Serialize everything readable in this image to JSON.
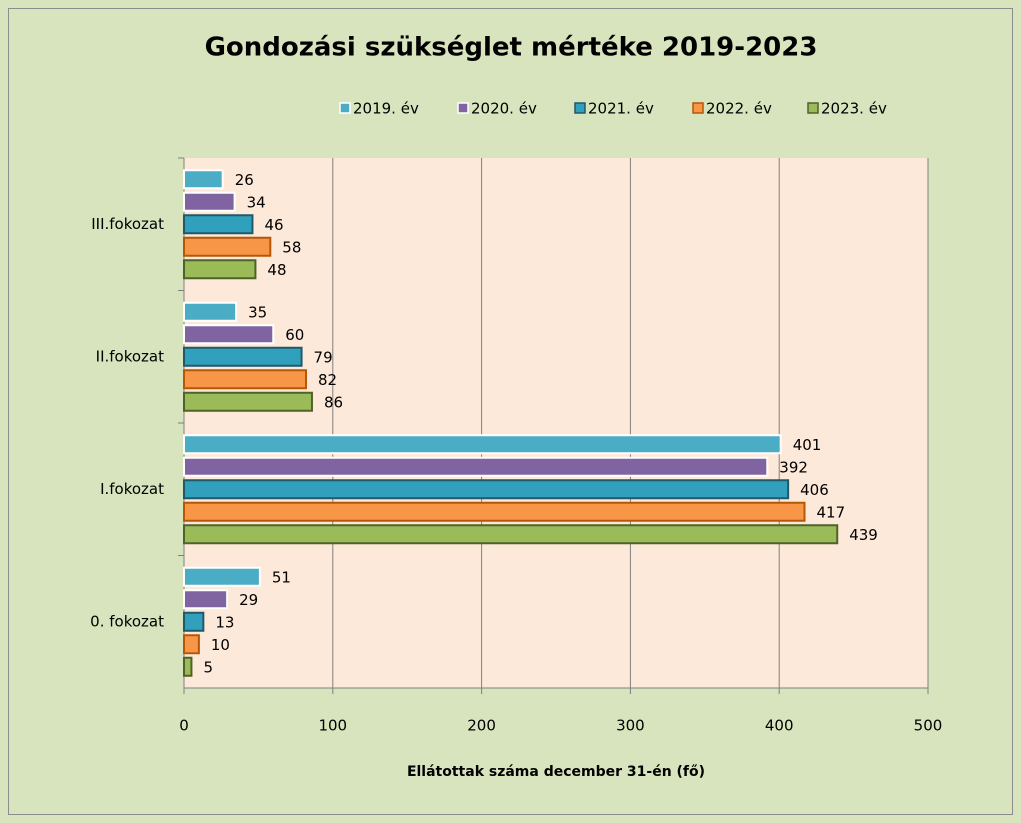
{
  "chart_data": {
    "type": "barh",
    "title": "Gondozási szükséglet mértéke 2019-2023",
    "xlabel": "Ellátottak száma december 31-én (fő)",
    "categories": [
      "III.fokozat",
      "II.fokozat",
      "I.fokozat",
      "0. fokozat"
    ],
    "series": [
      {
        "name": "2019. év",
        "color": "#4bacc6",
        "edgecolor": "#ffffff",
        "values": [
          26,
          35,
          401,
          51
        ]
      },
      {
        "name": "2020. év",
        "color": "#8064a2",
        "edgecolor": "#ffffff",
        "values": [
          34,
          60,
          392,
          29
        ]
      },
      {
        "name": "2021. év",
        "color": "#31a0bd",
        "edgecolor": "#215968",
        "values": [
          46,
          79,
          406,
          13
        ]
      },
      {
        "name": "2022. év",
        "color": "#f79646",
        "edgecolor": "#b65708",
        "values": [
          58,
          82,
          417,
          10
        ]
      },
      {
        "name": "2023. év",
        "color": "#9bbb59",
        "edgecolor": "#4f6228",
        "values": [
          48,
          86,
          439,
          5
        ]
      }
    ],
    "xlim": [
      0,
      500
    ],
    "xticks": [
      0,
      100,
      200,
      300,
      400,
      500
    ],
    "grid": true
  }
}
